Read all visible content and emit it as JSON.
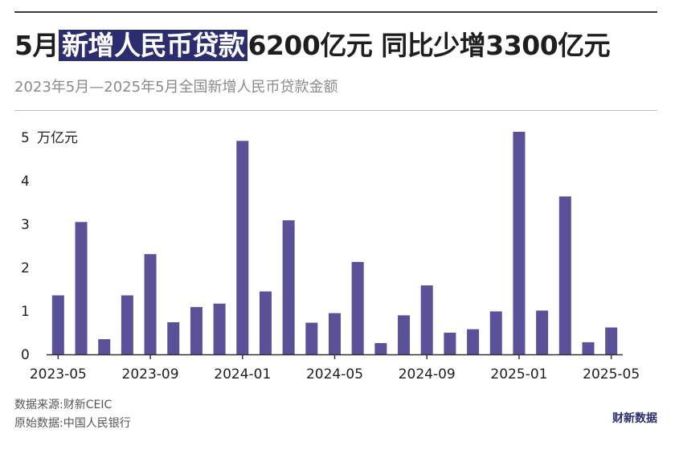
{
  "title": {
    "prefix": "5月",
    "highlight": "新增人民币贷款",
    "suffix": "6200亿元 同比少增3300亿元"
  },
  "subtitle": "2023年5月—2025年5月全国新增人民币贷款金额",
  "footer": {
    "source": "数据来源:财新CEIC",
    "original": "原始数据:中国人民银行"
  },
  "brand": "财新数据",
  "colors": {
    "bar": "#5b5199",
    "highlight_bg": "#2b2d6e",
    "axis": "#333333",
    "text": "#1e1e1e"
  },
  "chart_data": {
    "type": "bar",
    "unit_label": "万亿元",
    "categories": [
      "2023-05",
      "2023-06",
      "2023-07",
      "2023-08",
      "2023-09",
      "2023-10",
      "2023-11",
      "2023-12",
      "2024-01",
      "2024-02",
      "2024-03",
      "2024-04",
      "2024-05",
      "2024-06",
      "2024-07",
      "2024-08",
      "2024-09",
      "2024-10",
      "2024-11",
      "2024-12",
      "2025-01",
      "2025-02",
      "2025-03",
      "2025-04",
      "2025-05"
    ],
    "values": [
      1.36,
      3.05,
      0.35,
      1.36,
      2.31,
      0.74,
      1.09,
      1.17,
      4.92,
      1.45,
      3.09,
      0.73,
      0.95,
      2.13,
      0.26,
      0.9,
      1.59,
      0.5,
      0.58,
      0.99,
      5.13,
      1.01,
      3.64,
      0.28,
      0.62
    ],
    "x_tick_labels": [
      "2023-05",
      "2023-09",
      "2024-01",
      "2024-05",
      "2024-09",
      "2025-01",
      "2025-05"
    ],
    "y_ticks": [
      "0",
      "1",
      "2",
      "3",
      "4",
      "5"
    ],
    "ylim": [
      0,
      5.3
    ],
    "grid": false
  }
}
